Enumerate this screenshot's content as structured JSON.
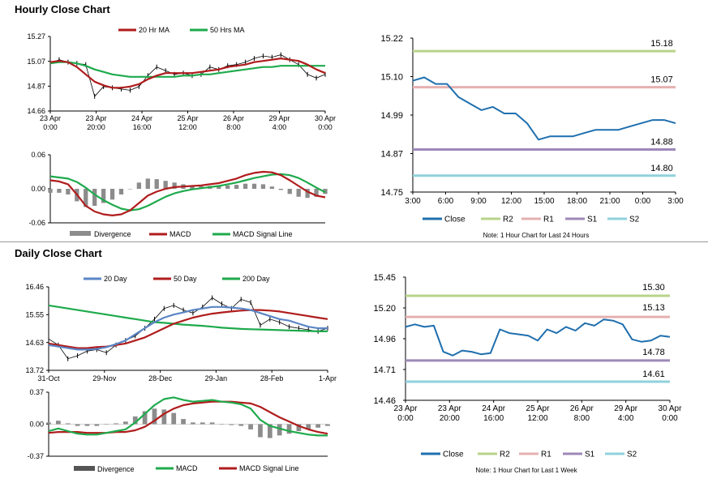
{
  "titles": {
    "hourly": "Hourly Close Chart",
    "daily": "Daily Close Chart"
  },
  "colors": {
    "red": "#b01c1c",
    "green": "#1eaa4c",
    "blue": "#5b86c5",
    "darkblue": "#1f6fae",
    "r2": "#b8d38a",
    "r1": "#e6b0b0",
    "s1": "#9e88b8",
    "s2": "#8fd1dc",
    "grey": "#8c8c8c",
    "black": "#000000"
  },
  "chart_data": [
    {
      "id": "hourly_price",
      "type": "line",
      "title": "",
      "legend": [
        "20 Hr MA",
        "50 Hrs MA"
      ],
      "ylim": [
        14.66,
        15.27
      ],
      "yticks": [
        "15.27",
        "15.07",
        "14.87",
        "14.66"
      ],
      "xticks": [
        [
          "23 Apr",
          "0:00"
        ],
        [
          "23 Apr",
          "20:00"
        ],
        [
          "24 Apr",
          "16:00"
        ],
        [
          "25 Apr",
          "12:00"
        ],
        [
          "26 Apr",
          "8:00"
        ],
        [
          "29 Apr",
          "4:00"
        ],
        [
          "30 Apr",
          "0:00"
        ]
      ],
      "series": [
        {
          "name": "Close",
          "values": [
            15.05,
            15.08,
            15.06,
            15.05,
            15.04,
            14.78,
            14.86,
            14.85,
            14.84,
            14.83,
            14.86,
            14.95,
            15.02,
            14.99,
            14.96,
            14.97,
            14.95,
            14.96,
            15.02,
            15.0,
            15.03,
            15.04,
            15.06,
            15.09,
            15.11,
            15.1,
            15.12,
            15.08,
            15.04,
            14.96,
            14.93,
            14.96
          ]
        },
        {
          "name": "20 Hr MA",
          "values": [
            15.06,
            15.07,
            15.06,
            15.02,
            14.96,
            14.9,
            14.87,
            14.85,
            14.85,
            14.86,
            14.88,
            14.92,
            14.95,
            14.97,
            14.97,
            14.97,
            14.97,
            14.98,
            14.99,
            15.0,
            15.02,
            15.03,
            15.04,
            15.06,
            15.07,
            15.08,
            15.09,
            15.08,
            15.07,
            15.04,
            15.0,
            14.97
          ]
        },
        {
          "name": "50 Hrs MA",
          "values": [
            15.05,
            15.06,
            15.06,
            15.05,
            15.03,
            15.0,
            14.98,
            14.96,
            14.95,
            14.94,
            14.94,
            14.94,
            14.94,
            14.94,
            14.94,
            14.95,
            14.95,
            14.96,
            14.96,
            14.97,
            14.98,
            14.99,
            15.0,
            15.01,
            15.02,
            15.02,
            15.03,
            15.03,
            15.03,
            15.03,
            15.03,
            15.03
          ]
        }
      ]
    },
    {
      "id": "hourly_macd",
      "type": "line",
      "legend": [
        "Divergence",
        "MACD",
        "MACD Signal Line"
      ],
      "ylim": [
        -0.06,
        0.06
      ],
      "yticks": [
        "0.06",
        "0.00",
        "-0.06"
      ],
      "series": [
        {
          "name": "MACD",
          "values": [
            0.015,
            0.013,
            0.008,
            -0.01,
            -0.03,
            -0.04,
            -0.045,
            -0.047,
            -0.045,
            -0.038,
            -0.025,
            -0.012,
            -0.005,
            0.0,
            0.003,
            0.004,
            0.005,
            0.006,
            0.008,
            0.01,
            0.014,
            0.018,
            0.024,
            0.028,
            0.03,
            0.029,
            0.024,
            0.015,
            0.005,
            -0.005,
            -0.012,
            -0.015
          ]
        },
        {
          "name": "MACD Signal Line",
          "values": [
            0.022,
            0.02,
            0.018,
            0.012,
            0.002,
            -0.01,
            -0.02,
            -0.028,
            -0.035,
            -0.038,
            -0.036,
            -0.03,
            -0.022,
            -0.014,
            -0.008,
            -0.004,
            -0.001,
            0.001,
            0.003,
            0.005,
            0.008,
            0.011,
            0.015,
            0.019,
            0.022,
            0.025,
            0.026,
            0.024,
            0.019,
            0.011,
            0.002,
            -0.006
          ]
        },
        {
          "name": "Divergence",
          "values": [
            -0.007,
            -0.007,
            -0.01,
            -0.022,
            -0.032,
            -0.03,
            -0.025,
            -0.019,
            -0.01,
            0.0,
            0.011,
            0.018,
            0.017,
            0.014,
            0.011,
            0.008,
            0.006,
            0.005,
            0.005,
            0.005,
            0.006,
            0.007,
            0.009,
            0.009,
            0.008,
            0.004,
            -0.002,
            -0.009,
            -0.014,
            -0.016,
            -0.014,
            -0.009
          ]
        }
      ]
    },
    {
      "id": "hourly_levels",
      "type": "line",
      "ylim": [
        14.75,
        15.22
      ],
      "yticks": [
        "15.22",
        "15.10",
        "14.99",
        "14.87",
        "14.75"
      ],
      "xticks": [
        "3:00",
        "6:00",
        "9:00",
        "12:00",
        "15:00",
        "18:00",
        "21:00",
        "0:00",
        "3:00"
      ],
      "levels": [
        {
          "name": "R2",
          "value": 15.18,
          "label": "15.18"
        },
        {
          "name": "R1",
          "value": 15.07,
          "label": "15.07"
        },
        {
          "name": "S1",
          "value": 14.88,
          "label": "14.88"
        },
        {
          "name": "S2",
          "value": 14.8,
          "label": "14.80"
        }
      ],
      "series": [
        {
          "name": "Close",
          "values": [
            15.09,
            15.1,
            15.08,
            15.08,
            15.04,
            15.02,
            15.0,
            15.01,
            14.99,
            14.99,
            14.96,
            14.91,
            14.92,
            14.92,
            14.92,
            14.93,
            14.94,
            14.94,
            14.94,
            14.95,
            14.96,
            14.97,
            14.97,
            14.96
          ]
        }
      ],
      "legend": [
        "Close",
        "R2",
        "R1",
        "S1",
        "S2"
      ],
      "note": "Note: 1 Hour Chart for Last 24 Hours"
    },
    {
      "id": "daily_price",
      "type": "line",
      "legend": [
        "20 Day",
        "50 Day",
        "200 Day"
      ],
      "ylim": [
        13.72,
        16.46
      ],
      "yticks": [
        "16.46",
        "15.55",
        "14.63",
        "13.72"
      ],
      "xticks": [
        "31-Oct",
        "29-Nov",
        "28-Dec",
        "29-Jan",
        "28-Feb",
        "1-Apr"
      ],
      "series": [
        {
          "name": "Close",
          "values": [
            14.75,
            14.55,
            14.1,
            14.2,
            14.35,
            14.4,
            14.3,
            14.55,
            14.7,
            14.85,
            15.1,
            15.4,
            15.75,
            15.85,
            15.7,
            15.6,
            15.8,
            16.1,
            15.9,
            15.75,
            16.05,
            15.95,
            15.2,
            15.4,
            15.3,
            15.15,
            15.1,
            15.05,
            15.0,
            15.1
          ]
        },
        {
          "name": "20 Day",
          "values": [
            14.55,
            14.5,
            14.45,
            14.4,
            14.4,
            14.42,
            14.48,
            14.58,
            14.7,
            14.9,
            15.1,
            15.3,
            15.45,
            15.55,
            15.62,
            15.7,
            15.75,
            15.8,
            15.8,
            15.78,
            15.75,
            15.7,
            15.6,
            15.5,
            15.4,
            15.35,
            15.25,
            15.15,
            15.1,
            15.1
          ]
        },
        {
          "name": "50 Day",
          "values": [
            14.6,
            14.55,
            14.5,
            14.45,
            14.45,
            14.48,
            14.5,
            14.55,
            14.6,
            14.7,
            14.8,
            14.95,
            15.1,
            15.25,
            15.35,
            15.45,
            15.52,
            15.58,
            15.62,
            15.65,
            15.68,
            15.7,
            15.7,
            15.68,
            15.65,
            15.6,
            15.55,
            15.5,
            15.45,
            15.4
          ]
        },
        {
          "name": "200 Day",
          "values": [
            15.85,
            15.8,
            15.75,
            15.7,
            15.65,
            15.6,
            15.55,
            15.5,
            15.45,
            15.4,
            15.35,
            15.3,
            15.28,
            15.25,
            15.22,
            15.2,
            15.18,
            15.15,
            15.12,
            15.1,
            15.08,
            15.07,
            15.06,
            15.05,
            15.04,
            15.03,
            15.02,
            15.01,
            15.0,
            15.0
          ]
        }
      ]
    },
    {
      "id": "daily_macd",
      "type": "line",
      "legend": [
        "Divergence",
        "MACD",
        "MACD Signal Line"
      ],
      "ylim": [
        -0.37,
        0.37
      ],
      "yticks": [
        "0.37",
        "0.00",
        "-0.37"
      ],
      "series": [
        {
          "name": "MACD",
          "values": [
            -0.08,
            -0.05,
            -0.08,
            -0.11,
            -0.12,
            -0.12,
            -0.1,
            -0.08,
            -0.06,
            0.02,
            0.12,
            0.22,
            0.29,
            0.31,
            0.28,
            0.26,
            0.27,
            0.28,
            0.26,
            0.25,
            0.23,
            0.18,
            0.05,
            -0.02,
            -0.05,
            -0.08,
            -0.1,
            -0.12,
            -0.13,
            -0.13
          ]
        },
        {
          "name": "MACD Signal Line",
          "values": [
            -0.1,
            -0.09,
            -0.09,
            -0.09,
            -0.1,
            -0.1,
            -0.1,
            -0.09,
            -0.09,
            -0.07,
            -0.03,
            0.04,
            0.12,
            0.18,
            0.22,
            0.24,
            0.25,
            0.26,
            0.26,
            0.26,
            0.25,
            0.24,
            0.2,
            0.14,
            0.08,
            0.03,
            -0.02,
            -0.06,
            -0.09,
            -0.11
          ]
        },
        {
          "name": "Divergence",
          "values": [
            0.02,
            0.04,
            0.01,
            -0.02,
            -0.02,
            -0.02,
            0.0,
            0.01,
            0.03,
            0.09,
            0.15,
            0.18,
            0.17,
            0.13,
            0.06,
            0.02,
            0.02,
            0.02,
            0.0,
            -0.01,
            -0.02,
            -0.06,
            -0.15,
            -0.16,
            -0.13,
            -0.11,
            -0.08,
            -0.06,
            -0.04,
            -0.02
          ]
        }
      ]
    },
    {
      "id": "daily_levels",
      "type": "line",
      "ylim": [
        14.46,
        15.45
      ],
      "yticks": [
        "15.45",
        "15.20",
        "14.96",
        "14.71",
        "14.46"
      ],
      "xticks": [
        [
          "23 Apr",
          "0:00"
        ],
        [
          "23 Apr",
          "20:00"
        ],
        [
          "24 Apr",
          "16:00"
        ],
        [
          "25 Apr",
          "12:00"
        ],
        [
          "26 Apr",
          "8:00"
        ],
        [
          "29 Apr",
          "4:00"
        ],
        [
          "30 Apr",
          "0:00"
        ]
      ],
      "levels": [
        {
          "name": "R2",
          "value": 15.3,
          "label": "15.30"
        },
        {
          "name": "R1",
          "value": 15.13,
          "label": "15.13"
        },
        {
          "name": "S1",
          "value": 14.78,
          "label": "14.78"
        },
        {
          "name": "S2",
          "value": 14.61,
          "label": "14.61"
        }
      ],
      "series": [
        {
          "name": "Close",
          "values": [
            15.05,
            15.07,
            15.05,
            15.06,
            14.85,
            14.82,
            14.86,
            14.85,
            14.83,
            14.84,
            15.03,
            15.0,
            14.99,
            14.98,
            14.94,
            15.03,
            15.0,
            15.05,
            15.02,
            15.08,
            15.06,
            15.11,
            15.1,
            15.07,
            14.95,
            14.93,
            14.94,
            14.98,
            14.97
          ]
        }
      ],
      "legend": [
        "Close",
        "R2",
        "R1",
        "S1",
        "S2"
      ],
      "note": "Note: 1 Hour Chart for Last 1 Week"
    }
  ]
}
